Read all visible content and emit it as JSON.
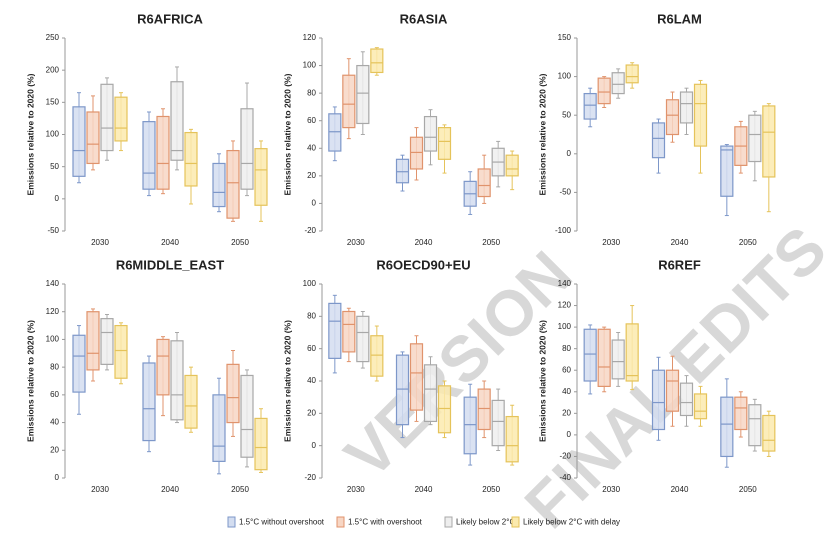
{
  "legend": [
    {
      "name": "1.5°C without overshoot",
      "color": "#7d97c9",
      "fill": "#d3ddf0"
    },
    {
      "name": "1.5°C with overshoot",
      "color": "#e0936c",
      "fill": "#f7d6c4"
    },
    {
      "name": "Likely below 2°C",
      "color": "#a8a8a8",
      "fill": "#eeeeee"
    },
    {
      "name": "Likely below 2°C with delay",
      "color": "#e5c35a",
      "fill": "#fbeaae"
    }
  ],
  "watermark": [
    "VERSION",
    "FINAL EDITS"
  ],
  "chart_data": [
    {
      "type": "box",
      "title": "R6AFRICA",
      "y_label": "Emissions relative to 2020 (%)",
      "categories": [
        "2030",
        "2040",
        "2050"
      ],
      "ylim": [
        -50,
        250
      ],
      "yticks": [
        -50,
        0,
        50,
        100,
        150,
        200,
        250
      ],
      "series": [
        {
          "values": [
            [
              25,
              35,
              75,
              143,
              165
            ],
            [
              5,
              15,
              40,
              120,
              135
            ],
            [
              -20,
              -12,
              10,
              55,
              70
            ]
          ]
        },
        {
          "values": [
            [
              45,
              55,
              85,
              135,
              160
            ],
            [
              8,
              15,
              55,
              128,
              140
            ],
            [
              -35,
              -30,
              25,
              75,
              90
            ]
          ]
        },
        {
          "values": [
            [
              60,
              75,
              110,
              178,
              188
            ],
            [
              45,
              60,
              75,
              182,
              205
            ],
            [
              5,
              15,
              55,
              140,
              180
            ]
          ]
        },
        {
          "values": [
            [
              75,
              90,
              110,
              158,
              165
            ],
            [
              -8,
              20,
              55,
              103,
              108
            ],
            [
              -35,
              -10,
              45,
              78,
              90
            ]
          ]
        }
      ]
    },
    {
      "type": "box",
      "title": "R6ASIA",
      "y_label": "Emissions relative to 2020 (%)",
      "categories": [
        "2030",
        "2040",
        "2050"
      ],
      "ylim": [
        -20,
        120
      ],
      "yticks": [
        -20,
        0,
        20,
        40,
        60,
        80,
        100,
        120
      ],
      "series": [
        {
          "values": [
            [
              31,
              38,
              52,
              65,
              70
            ],
            [
              9,
              15,
              23,
              32,
              35
            ],
            [
              -8,
              -2,
              7,
              16,
              23
            ]
          ]
        },
        {
          "values": [
            [
              47,
              55,
              72,
              93,
              105
            ],
            [
              17,
              25,
              37,
              48,
              55
            ],
            [
              0,
              5,
              13,
              25,
              35
            ]
          ]
        },
        {
          "values": [
            [
              50,
              58,
              80,
              100,
              110
            ],
            [
              28,
              38,
              48,
              63,
              68
            ],
            [
              12,
              20,
              30,
              40,
              45
            ]
          ]
        },
        {
          "values": [
            [
              93,
              95,
              102,
              112,
              113
            ],
            [
              22,
              32,
              45,
              55,
              57
            ],
            [
              10,
              20,
              25,
              35,
              38
            ]
          ]
        }
      ]
    },
    {
      "type": "box",
      "title": "R6LAM",
      "y_label": "Emissions relative to 2020 (%)",
      "categories": [
        "2030",
        "2040",
        "2050"
      ],
      "ylim": [
        -100,
        150
      ],
      "yticks": [
        -100,
        -50,
        0,
        50,
        100,
        150
      ],
      "series": [
        {
          "values": [
            [
              35,
              45,
              63,
              78,
              85
            ],
            [
              -25,
              -5,
              20,
              40,
              45
            ],
            [
              -80,
              -55,
              5,
              10,
              12
            ]
          ]
        },
        {
          "values": [
            [
              60,
              65,
              80,
              98,
              100
            ],
            [
              15,
              25,
              50,
              70,
              80
            ],
            [
              -25,
              -15,
              10,
              35,
              42
            ]
          ]
        },
        {
          "values": [
            [
              72,
              78,
              90,
              105,
              110
            ],
            [
              25,
              40,
              65,
              80,
              85
            ],
            [
              -35,
              -10,
              25,
              50,
              55
            ]
          ]
        },
        {
          "values": [
            [
              85,
              92,
              100,
              115,
              118
            ],
            [
              -25,
              10,
              65,
              90,
              95
            ],
            [
              -75,
              -30,
              28,
              62,
              65
            ]
          ]
        }
      ]
    },
    {
      "type": "box",
      "title": "R6MIDDLE_EAST",
      "y_label": "Emissions relative to 2020 (%)",
      "categories": [
        "2030",
        "2040",
        "2050"
      ],
      "ylim": [
        0,
        140
      ],
      "yticks": [
        0,
        20,
        40,
        60,
        80,
        100,
        120,
        140
      ],
      "series": [
        {
          "values": [
            [
              46,
              62,
              88,
              103,
              110
            ],
            [
              19,
              27,
              50,
              83,
              88
            ],
            [
              3,
              12,
              23,
              60,
              72
            ]
          ]
        },
        {
          "values": [
            [
              70,
              78,
              90,
              120,
              122
            ],
            [
              45,
              60,
              88,
              100,
              102
            ],
            [
              30,
              40,
              58,
              82,
              92
            ]
          ]
        },
        {
          "values": [
            [
              78,
              82,
              105,
              115,
              118
            ],
            [
              40,
              42,
              60,
              99,
              105
            ],
            [
              8,
              15,
              35,
              74,
              78
            ]
          ]
        },
        {
          "values": [
            [
              68,
              72,
              92,
              110,
              112
            ],
            [
              33,
              36,
              52,
              74,
              80
            ],
            [
              4,
              6,
              22,
              43,
              50
            ]
          ]
        }
      ]
    },
    {
      "type": "box",
      "title": "R6OECD90+EU",
      "y_label": "Emissions relative to 2020 (%)",
      "categories": [
        "2030",
        "2040",
        "2050"
      ],
      "ylim": [
        -20,
        100
      ],
      "yticks": [
        -20,
        0,
        20,
        40,
        60,
        80,
        100
      ],
      "series": [
        {
          "values": [
            [
              45,
              54,
              77,
              88,
              93
            ],
            [
              5,
              13,
              35,
              56,
              58
            ],
            [
              -12,
              -5,
              13,
              30,
              38
            ]
          ]
        },
        {
          "values": [
            [
              52,
              58,
              75,
              83,
              85
            ],
            [
              15,
              22,
              45,
              63,
              68
            ],
            [
              5,
              10,
              23,
              35,
              40
            ]
          ]
        },
        {
          "values": [
            [
              48,
              52,
              70,
              80,
              83
            ],
            [
              13,
              15,
              35,
              50,
              55
            ],
            [
              -3,
              0,
              15,
              28,
              35
            ]
          ]
        },
        {
          "values": [
            [
              40,
              43,
              56,
              68,
              74
            ],
            [
              5,
              8,
              23,
              37,
              40
            ],
            [
              -12,
              -10,
              0,
              18,
              25
            ]
          ]
        }
      ]
    },
    {
      "type": "box",
      "title": "R6REF",
      "y_label": "Emissions relative to 2020 (%)",
      "categories": [
        "2030",
        "2040",
        "2050"
      ],
      "ylim": [
        -40,
        140
      ],
      "yticks": [
        -40,
        -20,
        0,
        20,
        40,
        60,
        80,
        100,
        120,
        140
      ],
      "series": [
        {
          "values": [
            [
              38,
              50,
              75,
              98,
              102
            ],
            [
              -5,
              5,
              30,
              60,
              72
            ],
            [
              -30,
              -20,
              10,
              35,
              52
            ]
          ]
        },
        {
          "values": [
            [
              40,
              45,
              63,
              98,
              100
            ],
            [
              8,
              22,
              50,
              60,
              73
            ],
            [
              -2,
              5,
              25,
              35,
              40
            ]
          ]
        },
        {
          "values": [
            [
              45,
              52,
              68,
              88,
              95
            ],
            [
              8,
              18,
              30,
              48,
              55
            ],
            [
              -15,
              -10,
              15,
              28,
              33
            ]
          ]
        },
        {
          "values": [
            [
              42,
              50,
              55,
              103,
              120
            ],
            [
              8,
              15,
              22,
              38,
              45
            ],
            [
              -20,
              -15,
              -5,
              18,
              22
            ]
          ]
        }
      ]
    }
  ]
}
